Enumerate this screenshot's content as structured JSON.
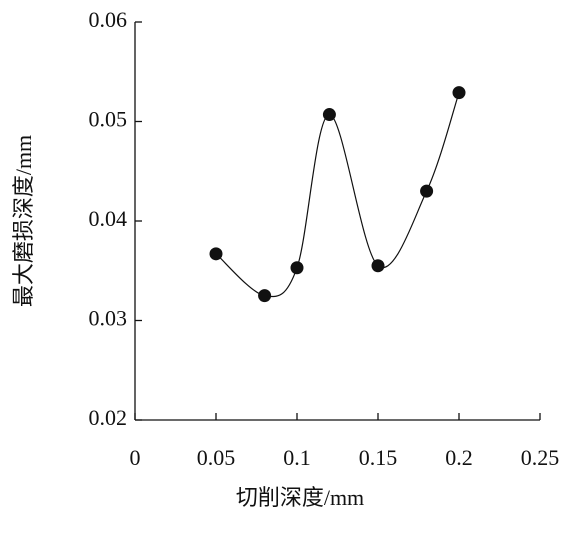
{
  "chart_data": {
    "type": "scatter",
    "x_label": "切削深度/mm",
    "y_label": "最大磨损深度/mm",
    "x": [
      0.05,
      0.08,
      0.1,
      0.12,
      0.15,
      0.18,
      0.2
    ],
    "values": [
      0.0367,
      0.0325,
      0.0353,
      0.0507,
      0.0355,
      0.043,
      0.0529
    ],
    "color": "#111111",
    "smooth_line": true,
    "xlim": [
      0,
      0.25
    ],
    "xticks": [
      0,
      0.05,
      0.1,
      0.15,
      0.2,
      0.25
    ],
    "ylim": [
      0.02,
      0.06
    ],
    "yticks": [
      0.02,
      0.03,
      0.04,
      0.05,
      0.06
    ]
  }
}
